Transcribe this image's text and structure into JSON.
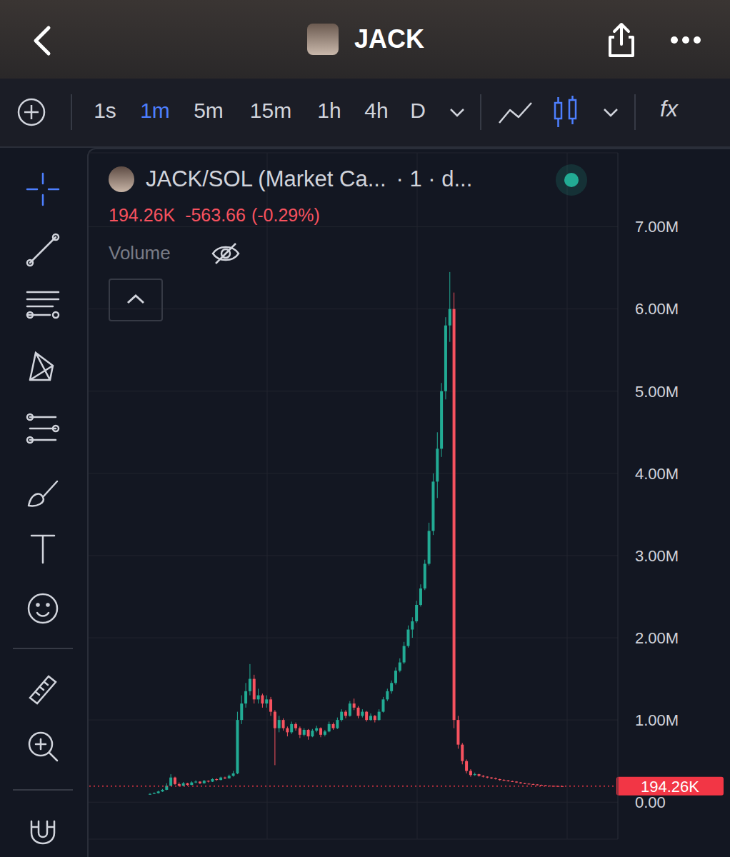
{
  "app": {
    "symbol": "JACK",
    "timeframes": [
      "1s",
      "1m",
      "5m",
      "15m",
      "1h",
      "4h",
      "D"
    ],
    "active_timeframe": "1m",
    "function_button": "fx"
  },
  "chart_data": {
    "type": "candlestick",
    "title": "JACK/SOL (Market Ca...",
    "subtitle": "· 1 · d...",
    "header_values": {
      "last": "194.26K",
      "change": "-563.66",
      "change_pct": "(-0.29%)",
      "volume": "Volume"
    },
    "values": [
      [
        95000,
        110000,
        90000,
        100000
      ],
      [
        100000,
        120000,
        98000,
        110000
      ],
      [
        110000,
        140000,
        105000,
        130000
      ],
      [
        130000,
        160000,
        125000,
        150000
      ],
      [
        150000,
        230000,
        145000,
        200000
      ],
      [
        200000,
        340000,
        195000,
        300000
      ],
      [
        300000,
        310000,
        210000,
        220000
      ],
      [
        220000,
        240000,
        190000,
        200000
      ],
      [
        200000,
        245000,
        195000,
        230000
      ],
      [
        230000,
        235000,
        200000,
        210000
      ],
      [
        210000,
        255000,
        205000,
        240000
      ],
      [
        240000,
        265000,
        230000,
        250000
      ],
      [
        250000,
        255000,
        220000,
        230000
      ],
      [
        230000,
        270000,
        225000,
        260000
      ],
      [
        260000,
        265000,
        240000,
        250000
      ],
      [
        250000,
        290000,
        245000,
        280000
      ],
      [
        280000,
        290000,
        260000,
        270000
      ],
      [
        270000,
        310000,
        265000,
        300000
      ],
      [
        300000,
        310000,
        280000,
        290000
      ],
      [
        290000,
        335000,
        285000,
        320000
      ],
      [
        320000,
        380000,
        310000,
        350000
      ],
      [
        350000,
        1100000,
        340000,
        1000000
      ],
      [
        1000000,
        1300000,
        950000,
        1200000
      ],
      [
        1200000,
        1450000,
        1150000,
        1350000
      ],
      [
        1350000,
        1680000,
        1300000,
        1500000
      ],
      [
        1500000,
        1550000,
        1200000,
        1250000
      ],
      [
        1250000,
        1380000,
        1200000,
        1300000
      ],
      [
        1300000,
        1320000,
        1150000,
        1200000
      ],
      [
        1200000,
        1300000,
        1150000,
        1250000
      ],
      [
        1250000,
        1280000,
        1050000,
        1100000
      ],
      [
        1100000,
        1120000,
        450000,
        900000
      ],
      [
        900000,
        1050000,
        850000,
        1000000
      ],
      [
        1000000,
        1020000,
        870000,
        900000
      ],
      [
        900000,
        920000,
        800000,
        850000
      ],
      [
        850000,
        980000,
        830000,
        950000
      ],
      [
        950000,
        970000,
        870000,
        900000
      ],
      [
        900000,
        920000,
        780000,
        820000
      ],
      [
        820000,
        900000,
        800000,
        880000
      ],
      [
        880000,
        890000,
        760000,
        800000
      ],
      [
        800000,
        890000,
        790000,
        870000
      ],
      [
        870000,
        930000,
        850000,
        900000
      ],
      [
        900000,
        910000,
        790000,
        820000
      ],
      [
        820000,
        880000,
        800000,
        860000
      ],
      [
        860000,
        980000,
        850000,
        950000
      ],
      [
        950000,
        970000,
        880000,
        900000
      ],
      [
        900000,
        1030000,
        890000,
        1000000
      ],
      [
        1000000,
        1130000,
        980000,
        1100000
      ],
      [
        1100000,
        1120000,
        1020000,
        1050000
      ],
      [
        1050000,
        1230000,
        1040000,
        1200000
      ],
      [
        1200000,
        1260000,
        1120000,
        1150000
      ],
      [
        1150000,
        1170000,
        1020000,
        1050000
      ],
      [
        1050000,
        1130000,
        1030000,
        1100000
      ],
      [
        1100000,
        1110000,
        980000,
        1000000
      ],
      [
        1000000,
        1080000,
        990000,
        1050000
      ],
      [
        1050000,
        1060000,
        970000,
        1000000
      ],
      [
        1000000,
        1130000,
        990000,
        1100000
      ],
      [
        1100000,
        1280000,
        1090000,
        1250000
      ],
      [
        1250000,
        1380000,
        1230000,
        1350000
      ],
      [
        1350000,
        1480000,
        1320000,
        1450000
      ],
      [
        1450000,
        1640000,
        1430000,
        1600000
      ],
      [
        1600000,
        1750000,
        1580000,
        1700000
      ],
      [
        1700000,
        1950000,
        1680000,
        1900000
      ],
      [
        1900000,
        2150000,
        1880000,
        2100000
      ],
      [
        2100000,
        2250000,
        2000000,
        2200000
      ],
      [
        2200000,
        2450000,
        2180000,
        2400000
      ],
      [
        2400000,
        2650000,
        2380000,
        2600000
      ],
      [
        2600000,
        2950000,
        2580000,
        2900000
      ],
      [
        2900000,
        3400000,
        2880000,
        3300000
      ],
      [
        3300000,
        4000000,
        3250000,
        3900000
      ],
      [
        3900000,
        4500000,
        3700000,
        4300000
      ],
      [
        4300000,
        5100000,
        4200000,
        5000000
      ],
      [
        5000000,
        5900000,
        4900000,
        5800000
      ],
      [
        5800000,
        6450000,
        5600000,
        6000000
      ],
      [
        6000000,
        6200000,
        900000,
        1000000
      ],
      [
        1000000,
        1050000,
        650000,
        700000
      ],
      [
        700000,
        720000,
        460000,
        500000
      ],
      [
        500000,
        520000,
        350000,
        380000
      ],
      [
        380000,
        400000,
        310000,
        330000
      ],
      [
        330000,
        360000,
        320000,
        340000
      ],
      [
        340000,
        345000,
        310000,
        320000
      ],
      [
        320000,
        330000,
        300000,
        310000
      ],
      [
        310000,
        315000,
        290000,
        300000
      ],
      [
        300000,
        305000,
        280000,
        290000
      ],
      [
        290000,
        300000,
        275000,
        280000
      ],
      [
        280000,
        285000,
        260000,
        270000
      ],
      [
        270000,
        280000,
        258000,
        265000
      ],
      [
        265000,
        268000,
        250000,
        255000
      ],
      [
        255000,
        262000,
        245000,
        250000
      ],
      [
        250000,
        255000,
        235000,
        240000
      ],
      [
        240000,
        245000,
        225000,
        230000
      ],
      [
        230000,
        236000,
        220000,
        225000
      ],
      [
        225000,
        230000,
        215000,
        220000
      ],
      [
        220000,
        224000,
        210000,
        215000
      ],
      [
        215000,
        218000,
        205000,
        210000
      ],
      [
        210000,
        214000,
        200000,
        205000
      ],
      [
        205000,
        208000,
        196000,
        200000
      ],
      [
        200000,
        203000,
        194000,
        198000
      ],
      [
        198000,
        200000,
        192000,
        196000
      ],
      [
        196000,
        199000,
        191000,
        195000
      ],
      [
        195000,
        197000,
        190000,
        194260
      ]
    ],
    "colors": [
      "#22ab94",
      "#22ab94",
      "#22ab94",
      "#22ab94",
      "#22ab94",
      "#22ab94",
      "#f7525f",
      "#f7525f",
      "#22ab94",
      "#f7525f",
      "#22ab94",
      "#22ab94",
      "#f7525f",
      "#22ab94",
      "#f7525f",
      "#22ab94",
      "#f7525f",
      "#22ab94",
      "#f7525f",
      "#22ab94",
      "#22ab94",
      "#22ab94",
      "#22ab94",
      "#22ab94",
      "#22ab94",
      "#f7525f",
      "#22ab94",
      "#f7525f",
      "#22ab94",
      "#f7525f",
      "#f7525f",
      "#22ab94",
      "#f7525f",
      "#f7525f",
      "#22ab94",
      "#f7525f",
      "#f7525f",
      "#22ab94",
      "#f7525f",
      "#22ab94",
      "#22ab94",
      "#f7525f",
      "#22ab94",
      "#22ab94",
      "#f7525f",
      "#22ab94",
      "#22ab94",
      "#f7525f",
      "#22ab94",
      "#f7525f",
      "#f7525f",
      "#22ab94",
      "#f7525f",
      "#22ab94",
      "#f7525f",
      "#22ab94",
      "#22ab94",
      "#22ab94",
      "#22ab94",
      "#22ab94",
      "#22ab94",
      "#22ab94",
      "#22ab94",
      "#22ab94",
      "#22ab94",
      "#22ab94",
      "#22ab94",
      "#22ab94",
      "#22ab94",
      "#22ab94",
      "#22ab94",
      "#22ab94",
      "#22ab94",
      "#f7525f",
      "#f7525f",
      "#f7525f",
      "#f7525f",
      "#f7525f",
      "#22ab94",
      "#f7525f",
      "#f7525f",
      "#f7525f",
      "#f7525f",
      "#f7525f",
      "#f7525f",
      "#f7525f",
      "#f7525f",
      "#f7525f",
      "#f7525f",
      "#f7525f",
      "#f7525f",
      "#f7525f",
      "#f7525f",
      "#f7525f",
      "#f7525f",
      "#f7525f",
      "#f7525f",
      "#f7525f",
      "#f7525f",
      "#f7525f"
    ],
    "last": {
      "value": 194260,
      "label": "194.26K",
      "color": "#f23645"
    },
    "ylim": [
      -450000,
      7900000
    ],
    "yticks": [
      {
        "value": 0,
        "label": "0.00"
      },
      {
        "value": 1000000,
        "label": "1.00M"
      },
      {
        "value": 2000000,
        "label": "2.00M"
      },
      {
        "value": 3000000,
        "label": "3.00M"
      },
      {
        "value": 4000000,
        "label": "4.00M"
      },
      {
        "value": 5000000,
        "label": "5.00M"
      },
      {
        "value": 6000000,
        "label": "6.00M"
      },
      {
        "value": 7000000,
        "label": "7.00M"
      }
    ],
    "grid": true,
    "tick_labels": "y"
  }
}
